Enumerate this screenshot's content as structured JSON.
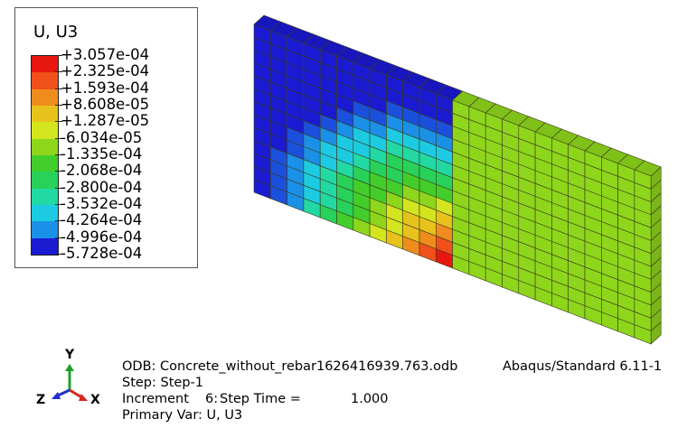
{
  "legend": {
    "title": "U, U3",
    "entries": [
      {
        "label": "+3.057e-04",
        "color": "#e8170f"
      },
      {
        "label": "+2.325e-04",
        "color": "#f0501a"
      },
      {
        "label": "+1.593e-04",
        "color": "#ef8c1e"
      },
      {
        "label": "+8.608e-05",
        "color": "#e8c21c"
      },
      {
        "label": "+1.287e-05",
        "color": "#d2e51e"
      },
      {
        "label": "-6.034e-05",
        "color": "#8ed61c"
      },
      {
        "label": "-1.335e-04",
        "color": "#43cd2a"
      },
      {
        "label": "-2.068e-04",
        "color": "#28d15a"
      },
      {
        "label": "-2.800e-04",
        "color": "#22d9a4"
      },
      {
        "label": "-3.532e-04",
        "color": "#1ccbe2"
      },
      {
        "label": "-4.264e-04",
        "color": "#1a90e6"
      },
      {
        "label": "-4.996e-04",
        "color": "#1a50dc"
      },
      {
        "label": "-5.728e-04",
        "color": ""
      }
    ],
    "minColor": "#1a1ad2"
  },
  "info": {
    "odb": "ODB: Concrete_without_rebar1626416939.763.odb",
    "solver": "Abaqus/Standard 6.11-1",
    "step": "Step: Step-1",
    "increment_label": "Increment",
    "increment_value": "6:",
    "step_time_label": "Step Time =",
    "step_time_value": "1.000",
    "primary_var": "Primary Var: U, U3"
  },
  "triad": {
    "y": "Y",
    "z": "Z",
    "x": "X",
    "colors": {
      "y": "#1f9e2a",
      "z": "#2030c8",
      "x": "#d8261f"
    }
  },
  "model": {
    "edge_color": "#3b3b1a",
    "right_half_color": "#8ed61c"
  }
}
